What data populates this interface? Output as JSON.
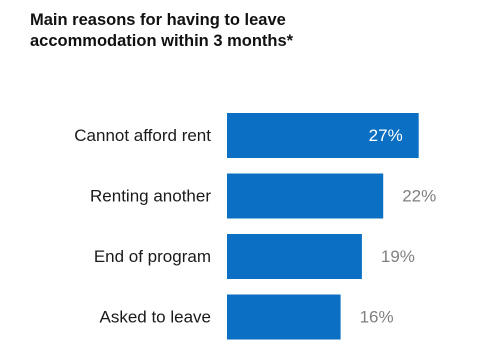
{
  "chart_data": {
    "type": "bar",
    "orientation": "horizontal",
    "title": "Main reasons for having to leave accommodation within 3 months*",
    "title_lines": [
      "Main reasons for having to leave",
      "accommodation within 3 months*"
    ],
    "categories": [
      "Cannot afford rent",
      "Renting another",
      "End of program",
      "Asked to leave"
    ],
    "values": [
      27,
      22,
      19,
      16
    ],
    "value_labels": [
      "27%",
      "22%",
      "19%",
      "16%"
    ],
    "unit": "%",
    "xlim": [
      0,
      40
    ],
    "grid": false,
    "legend": "none",
    "colors": {
      "bar": "#0b6fc3",
      "label_inside": "#ffffff",
      "label_outside": "#808080"
    }
  }
}
